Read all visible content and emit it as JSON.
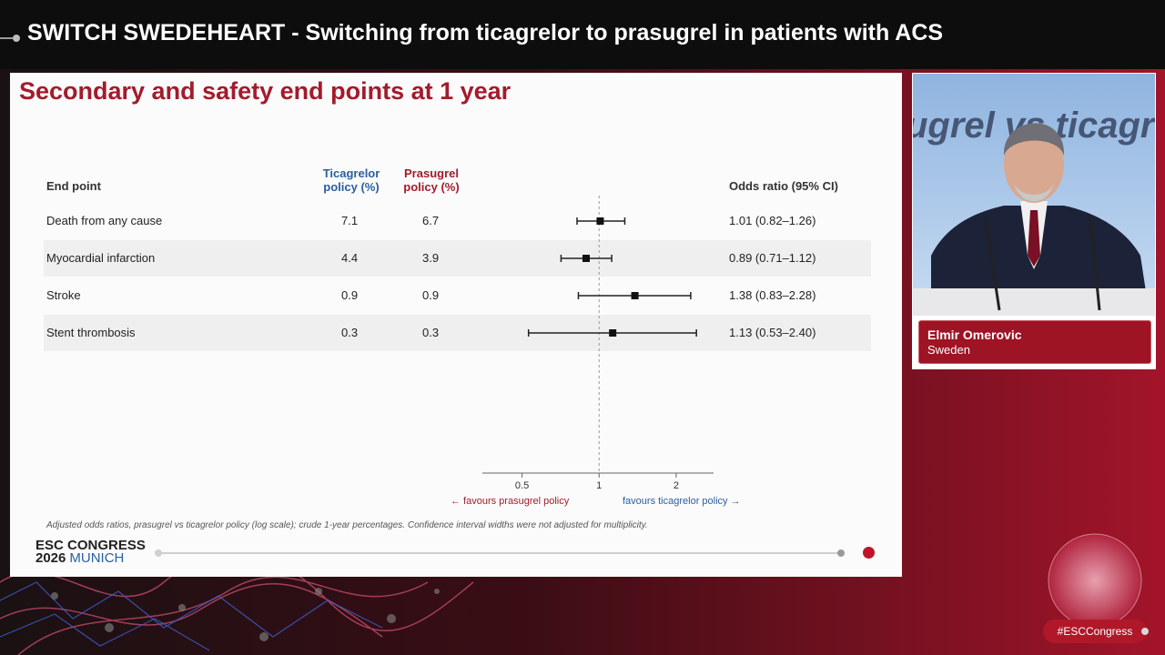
{
  "header": {
    "title": "SWITCH SWEDEHEART - Switching from ticagrelor to prasugrel in patients with ACS"
  },
  "slide": {
    "title": "Secondary and safety end points at 1 year",
    "columns": {
      "endpoint": "End point",
      "ticagrelor": [
        "Ticagrelor",
        "policy (%)"
      ],
      "prasugrel": [
        "Prasugrel",
        "policy (%)"
      ],
      "odds_ratio": "Odds ratio (95% CI)"
    },
    "footnote": "Adjusted odds ratios, prasugrel vs ticagrelor policy (log scale); crude 1-year percentages. Confidence interval widths were not adjusted for multiplicity.",
    "favours_prasugrel": "← favours prasugrel policy",
    "favours_ticagrelor": "favours ticagrelor policy →",
    "logo": {
      "line1": "ESC CONGRESS",
      "year": "2026",
      "city": "MUNICH"
    }
  },
  "chart_data": {
    "type": "forest",
    "scale": "log",
    "xlim": [
      0.35,
      2.8
    ],
    "reference_line": 1,
    "ticks": [
      {
        "value": 0.5,
        "label": "0.5"
      },
      {
        "value": 1,
        "label": "1"
      },
      {
        "value": 2,
        "label": "2"
      }
    ],
    "rows": [
      {
        "name": "Death from any cause",
        "ticagrelor": "7.1",
        "prasugrel": "6.7",
        "or": 1.01,
        "lo": 0.82,
        "hi": 1.26,
        "label": "1.01 (0.82–1.26)"
      },
      {
        "name": "Myocardial infarction",
        "ticagrelor": "4.4",
        "prasugrel": "3.9",
        "or": 0.89,
        "lo": 0.71,
        "hi": 1.12,
        "label": "0.89 (0.71–1.12)"
      },
      {
        "name": "Stroke",
        "ticagrelor": "0.9",
        "prasugrel": "0.9",
        "or": 1.38,
        "lo": 0.83,
        "hi": 2.28,
        "label": "1.38 (0.83–2.28)"
      },
      {
        "name": "Stent thrombosis",
        "ticagrelor": "0.3",
        "prasugrel": "0.3",
        "or": 1.13,
        "lo": 0.53,
        "hi": 2.4,
        "label": "1.13 (0.53–2.40)"
      }
    ]
  },
  "speaker": {
    "name": "Elmir Omerovic",
    "country": "Sweden",
    "backdrop_text": "ugrel vs ticagre"
  },
  "hashtag": "#ESCCongress",
  "colors": {
    "accent": "#a31b2c",
    "blue": "#2a5f9e",
    "nameplate": "#9e1424"
  }
}
